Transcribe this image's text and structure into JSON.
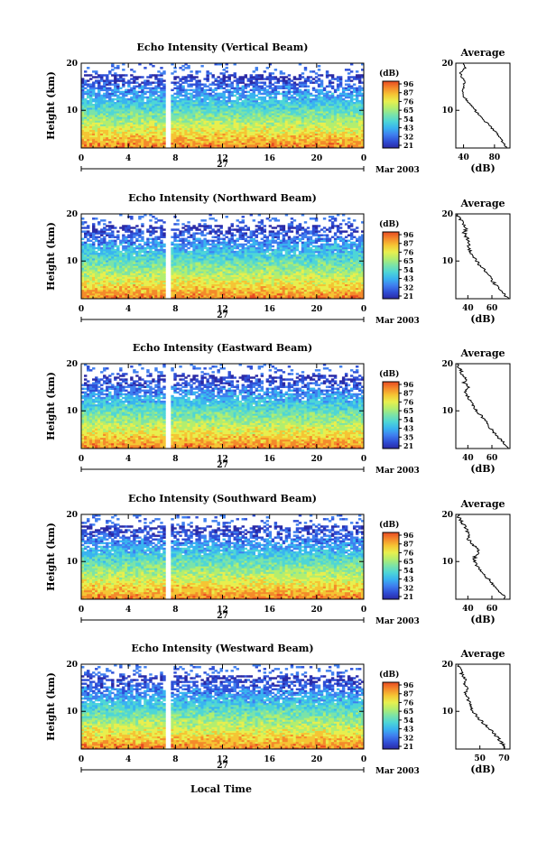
{
  "figure": {
    "xlabel": "Local Time",
    "date_label": "Mar 2003",
    "day_label": "27",
    "units_label": "(dB)",
    "avg_title": "Average",
    "avg_xlabel": "(dB)",
    "ylabel": "Height (km)"
  },
  "colors": {
    "colormap": [
      "#2b2aa6",
      "#2f4fd6",
      "#3f7fef",
      "#39b4f0",
      "#4ed6d6",
      "#7be3a8",
      "#b3ee6e",
      "#e8ef4e",
      "#f5c534",
      "#f48a2b",
      "#e84a22"
    ],
    "gap": "#ffffff"
  },
  "chart_data": [
    {
      "type": "heatmap",
      "title": "Echo Intensity (Vertical Beam)",
      "x_ticks": [
        "0",
        "4",
        "8",
        "12",
        "16",
        "20",
        "0"
      ],
      "y_ticks": [
        "10",
        "20"
      ],
      "xlim": [
        0,
        24
      ],
      "ylim": [
        2,
        20
      ],
      "colorbar_ticks": [
        "96",
        "87",
        "76",
        "65",
        "54",
        "43",
        "32",
        "21"
      ],
      "data_gap_hours": [
        7.2,
        7.6
      ],
      "average": {
        "x_ticks": [
          "40",
          "80"
        ],
        "xlim": [
          30,
          100
        ],
        "height_km": [
          2,
          3,
          4,
          5,
          6,
          7,
          8,
          9,
          10,
          11,
          12,
          13,
          14,
          15,
          16,
          17,
          18,
          19,
          20
        ],
        "db": [
          95,
          92,
          88,
          84,
          78,
          72,
          66,
          60,
          55,
          50,
          45,
          40,
          38,
          40,
          42,
          38,
          36,
          42,
          40
        ]
      }
    },
    {
      "type": "heatmap",
      "title": "Echo Intensity (Northward Beam)",
      "x_ticks": [
        "0",
        "4",
        "8",
        "12",
        "16",
        "20",
        "0"
      ],
      "y_ticks": [
        "10",
        "20"
      ],
      "xlim": [
        0,
        24
      ],
      "ylim": [
        2,
        20
      ],
      "colorbar_ticks": [
        "96",
        "87",
        "76",
        "65",
        "54",
        "43",
        "32",
        "21"
      ],
      "data_gap_hours": [
        7.2,
        7.6
      ],
      "average": {
        "x_ticks": [
          "40",
          "60"
        ],
        "xlim": [
          30,
          75
        ],
        "height_km": [
          2,
          3,
          4,
          5,
          6,
          7,
          8,
          9,
          10,
          11,
          12,
          13,
          14,
          15,
          16,
          17,
          18,
          19,
          20
        ],
        "db": [
          73,
          70,
          67,
          63,
          60,
          57,
          54,
          50,
          47,
          44,
          42,
          40,
          41,
          39,
          37,
          39,
          36,
          33,
          31
        ]
      }
    },
    {
      "type": "heatmap",
      "title": "Echo Intensity (Eastward Beam)",
      "x_ticks": [
        "0",
        "4",
        "8",
        "12",
        "16",
        "20",
        "0"
      ],
      "y_ticks": [
        "10",
        "20"
      ],
      "xlim": [
        0,
        24
      ],
      "ylim": [
        2,
        20
      ],
      "colorbar_ticks": [
        "96",
        "87",
        "76",
        "65",
        "54",
        "43",
        "35",
        "21"
      ],
      "data_gap_hours": [
        7.2,
        7.6
      ],
      "average": {
        "x_ticks": [
          "40",
          "60"
        ],
        "xlim": [
          30,
          75
        ],
        "height_km": [
          2,
          3,
          4,
          5,
          6,
          7,
          8,
          9,
          10,
          11,
          12,
          13,
          14,
          15,
          16,
          17,
          18,
          19,
          20
        ],
        "db": [
          73,
          70,
          67,
          63,
          60,
          57,
          54,
          51,
          47,
          44,
          42,
          40,
          38,
          40,
          37,
          38,
          35,
          33,
          31
        ]
      }
    },
    {
      "type": "heatmap",
      "title": "Echo Intensity (Southward Beam)",
      "x_ticks": [
        "0",
        "4",
        "8",
        "12",
        "16",
        "20",
        "0"
      ],
      "y_ticks": [
        "10",
        "20"
      ],
      "xlim": [
        0,
        24
      ],
      "ylim": [
        2,
        20
      ],
      "colorbar_ticks": [
        "96",
        "87",
        "76",
        "65",
        "54",
        "43",
        "32",
        "21"
      ],
      "data_gap_hours": [
        7.2,
        7.6
      ],
      "average": {
        "x_ticks": [
          "40",
          "60"
        ],
        "xlim": [
          30,
          75
        ],
        "height_km": [
          2,
          3,
          4,
          5,
          6,
          7,
          8,
          9,
          10,
          11,
          12,
          13,
          14,
          15,
          16,
          17,
          18,
          19,
          20
        ],
        "db": [
          71,
          69,
          65,
          62,
          58,
          54,
          51,
          48,
          45,
          46,
          49,
          47,
          43,
          40,
          41,
          38,
          36,
          33,
          32
        ]
      }
    },
    {
      "type": "heatmap",
      "title": "Echo Intensity (Westward Beam)",
      "x_ticks": [
        "0",
        "4",
        "8",
        "12",
        "16",
        "20",
        "0"
      ],
      "y_ticks": [
        "10",
        "20"
      ],
      "xlim": [
        0,
        24
      ],
      "ylim": [
        2,
        20
      ],
      "colorbar_ticks": [
        "96",
        "87",
        "76",
        "65",
        "54",
        "43",
        "32",
        "21"
      ],
      "data_gap_hours": [
        7.2,
        7.6
      ],
      "average": {
        "x_ticks": [
          "50",
          "70"
        ],
        "xlim": [
          30,
          75
        ],
        "height_km": [
          2,
          3,
          4,
          5,
          6,
          7,
          8,
          9,
          10,
          11,
          12,
          13,
          14,
          15,
          16,
          17,
          18,
          19,
          20
        ],
        "db": [
          71,
          69,
          66,
          63,
          59,
          55,
          51,
          47,
          44,
          42,
          41,
          40,
          38,
          40,
          37,
          38,
          35,
          34,
          32
        ]
      }
    }
  ]
}
